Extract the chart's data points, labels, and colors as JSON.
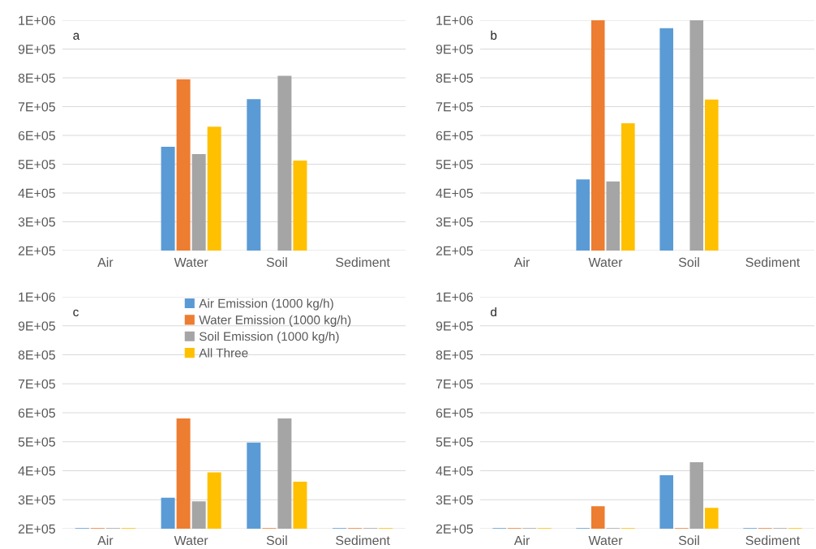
{
  "chart_data": [
    {
      "type": "bar",
      "title": "a",
      "categories": [
        "Air",
        "Water",
        "Soil",
        "Sediment"
      ],
      "ylim": [
        200000,
        1000000
      ],
      "yticks": [
        {
          "value": 200000,
          "label": "2E+05"
        },
        {
          "value": 300000,
          "label": "3E+05"
        },
        {
          "value": 400000,
          "label": "4E+05"
        },
        {
          "value": 500000,
          "label": "5E+05"
        },
        {
          "value": 600000,
          "label": "6E+05"
        },
        {
          "value": 700000,
          "label": "7E+05"
        },
        {
          "value": 800000,
          "label": "8E+05"
        },
        {
          "value": 900000,
          "label": "9E+05"
        },
        {
          "value": 1000000,
          "label": "1E+06"
        }
      ],
      "grid": "y",
      "series": [
        {
          "color": "#5b9bd5",
          "values": [
            null,
            558000,
            724000,
            null
          ]
        },
        {
          "color": "#ed7d31",
          "values": [
            null,
            793000,
            null,
            null
          ]
        },
        {
          "color": "#a5a5a5",
          "values": [
            null,
            533000,
            805000,
            null
          ]
        },
        {
          "color": "#ffc000",
          "values": [
            null,
            628000,
            510000,
            null
          ]
        }
      ]
    },
    {
      "type": "bar",
      "title": "b",
      "categories": [
        "Air",
        "Water",
        "Soil",
        "Sediment"
      ],
      "ylim": [
        200000,
        1000000
      ],
      "yticks": [
        {
          "value": 200000,
          "label": "2E+05"
        },
        {
          "value": 300000,
          "label": "3E+05"
        },
        {
          "value": 400000,
          "label": "4E+05"
        },
        {
          "value": 500000,
          "label": "5E+05"
        },
        {
          "value": 600000,
          "label": "6E+05"
        },
        {
          "value": 700000,
          "label": "7E+05"
        },
        {
          "value": 800000,
          "label": "8E+05"
        },
        {
          "value": 900000,
          "label": "9E+05"
        },
        {
          "value": 1000000,
          "label": "1E+06"
        }
      ],
      "grid": "y",
      "series": [
        {
          "color": "#5b9bd5",
          "values": [
            null,
            445000,
            970000,
            null
          ]
        },
        {
          "color": "#ed7d31",
          "values": [
            null,
            1000000,
            null,
            null
          ]
        },
        {
          "color": "#a5a5a5",
          "values": [
            null,
            438000,
            1000000,
            null
          ]
        },
        {
          "color": "#ffc000",
          "values": [
            null,
            640000,
            722000,
            null
          ]
        }
      ]
    },
    {
      "type": "bar",
      "title": "c",
      "categories": [
        "Air",
        "Water",
        "Soil",
        "Sediment"
      ],
      "ylim": [
        200000,
        1000000
      ],
      "yticks": [
        {
          "value": 200000,
          "label": "2E+05"
        },
        {
          "value": 300000,
          "label": "3E+05"
        },
        {
          "value": 400000,
          "label": "4E+05"
        },
        {
          "value": 500000,
          "label": "5E+05"
        },
        {
          "value": 600000,
          "label": "6E+05"
        },
        {
          "value": 700000,
          "label": "7E+05"
        },
        {
          "value": 800000,
          "label": "8E+05"
        },
        {
          "value": 900000,
          "label": "9E+05"
        },
        {
          "value": 1000000,
          "label": "1E+06"
        }
      ],
      "grid": "y",
      "legend": "top",
      "series": [
        {
          "name": "Air Emission (1000 kg/h)",
          "color": "#5b9bd5",
          "values": [
            200000,
            305000,
            495000,
            200000
          ]
        },
        {
          "name": "Water Emission (1000 kg/h)",
          "color": "#ed7d31",
          "values": [
            200000,
            578000,
            200000,
            200000
          ]
        },
        {
          "name": "Soil Emission (1000 kg/h)",
          "color": "#a5a5a5",
          "values": [
            200000,
            292000,
            578000,
            200000
          ]
        },
        {
          "name": "All Three",
          "color": "#ffc000",
          "values": [
            200000,
            392000,
            360000,
            200000
          ]
        }
      ]
    },
    {
      "type": "bar",
      "title": "d",
      "categories": [
        "Air",
        "Water",
        "Soil",
        "Sediment"
      ],
      "ylim": [
        200000,
        1000000
      ],
      "yticks": [
        {
          "value": 200000,
          "label": "2E+05"
        },
        {
          "value": 300000,
          "label": "3E+05"
        },
        {
          "value": 400000,
          "label": "4E+05"
        },
        {
          "value": 500000,
          "label": "5E+05"
        },
        {
          "value": 600000,
          "label": "6E+05"
        },
        {
          "value": 700000,
          "label": "7E+05"
        },
        {
          "value": 800000,
          "label": "8E+05"
        },
        {
          "value": 900000,
          "label": "9E+05"
        },
        {
          "value": 1000000,
          "label": "1E+06"
        }
      ],
      "grid": "y",
      "series": [
        {
          "color": "#5b9bd5",
          "values": [
            200000,
            200000,
            382000,
            200000
          ]
        },
        {
          "color": "#ed7d31",
          "values": [
            200000,
            275000,
            200000,
            200000
          ]
        },
        {
          "color": "#a5a5a5",
          "values": [
            200000,
            200000,
            427000,
            200000
          ]
        },
        {
          "color": "#ffc000",
          "values": [
            200000,
            200000,
            270000,
            200000
          ]
        }
      ]
    }
  ]
}
